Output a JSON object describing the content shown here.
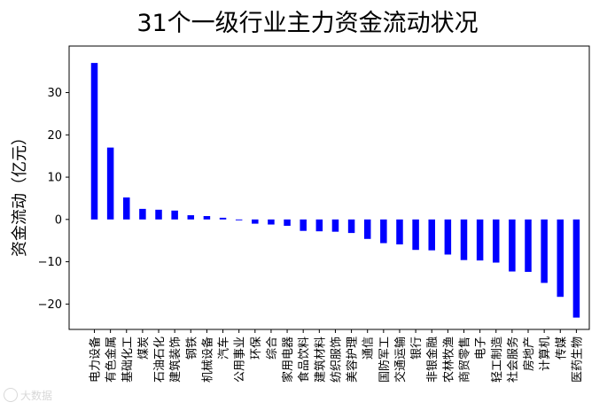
{
  "chart_data": {
    "type": "bar",
    "title": "31个一级行业主力资金流动状况",
    "ylabel": "资金流动（亿元）",
    "xlabel": "",
    "ylim": [
      -26,
      41
    ],
    "yticks": [
      -20,
      -10,
      0,
      10,
      20,
      30
    ],
    "bar_color": "#0000ff",
    "grid": false,
    "categories": [
      "电力设备",
      "有色金属",
      "基础化工",
      "煤炭",
      "石油石化",
      "建筑装饰",
      "钢铁",
      "机械设备",
      "汽车",
      "公用事业",
      "环保",
      "综合",
      "家用电器",
      "食品饮料",
      "建筑材料",
      "纺织服饰",
      "美容护理",
      "通信",
      "国防军工",
      "交通运输",
      "银行",
      "非银金融",
      "农林牧渔",
      "商贸零售",
      "电子",
      "轻工制造",
      "社会服务",
      "房地产",
      "计算机",
      "传媒",
      "医药生物"
    ],
    "values": [
      37.0,
      17.0,
      5.2,
      2.5,
      2.3,
      2.1,
      1.0,
      0.8,
      0.4,
      -0.2,
      -1.0,
      -1.2,
      -1.5,
      -2.7,
      -2.8,
      -2.9,
      -3.2,
      -4.6,
      -5.6,
      -5.9,
      -7.2,
      -7.3,
      -8.3,
      -9.6,
      -9.7,
      -10.2,
      -12.3,
      -12.4,
      -15.0,
      -18.3,
      -23.2
    ]
  },
  "watermark": {
    "text": "大数据"
  }
}
